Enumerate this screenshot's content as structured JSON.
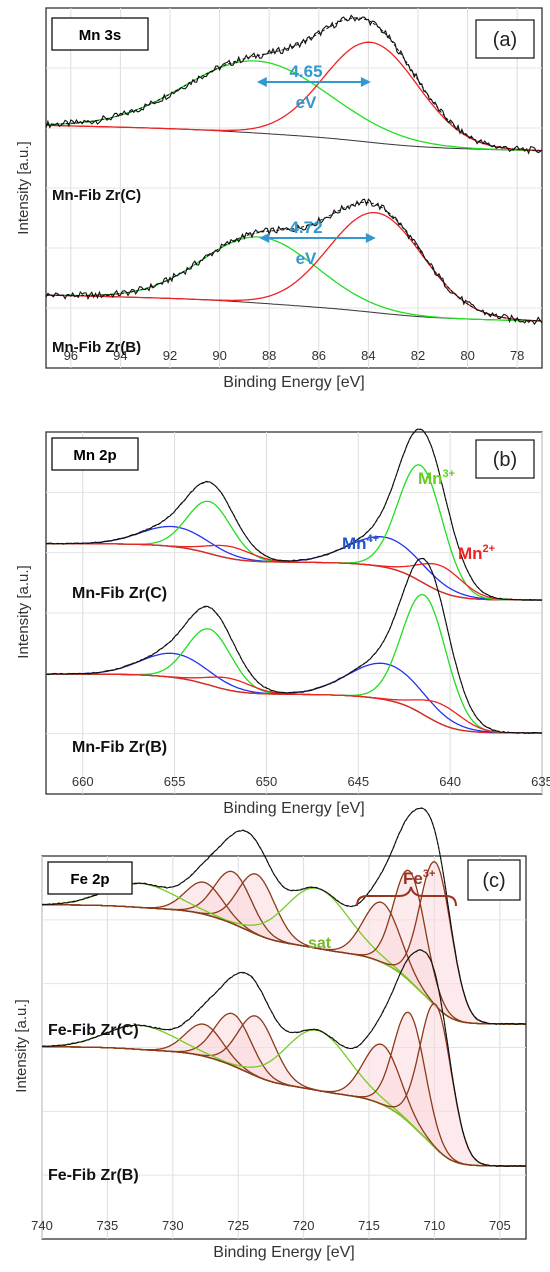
{
  "chart_data": [
    {
      "type": "line",
      "panel_id": "(a)",
      "title": "Mn 3s",
      "xlabel": "Binding Energy [eV]",
      "ylabel": "Intensity [a.u.]",
      "xlim": [
        97,
        77
      ],
      "x_reversed": true,
      "x_ticks": [
        96,
        94,
        92,
        90,
        88,
        86,
        84,
        82,
        80,
        78
      ],
      "grid": true,
      "samples": [
        {
          "name": "Mn-Fib Zr(C)",
          "annotation": {
            "value": "4.65",
            "unit": "eV",
            "from_x": 88.5,
            "to_x": 83.9
          },
          "baseline": {
            "x": [
              94,
              78.5
            ],
            "y": [
              0.04,
              -0.13
            ]
          },
          "components": [
            {
              "color": "#22dd22",
              "center": 88.5,
              "height": 0.36,
              "width": 2.9
            },
            {
              "color": "#ee2222",
              "center": 83.9,
              "height": 0.5,
              "width": 1.9
            }
          ],
          "data_x_range": [
            97,
            77
          ],
          "data_y_at_edges": [
            0.04,
            -0.12
          ]
        },
        {
          "name": "Mn-Fib Zr(B)",
          "annotation": {
            "value": "4.72",
            "unit": "eV",
            "from_x": 88.4,
            "to_x": 83.7
          },
          "baseline": {
            "x": [
              93,
              79
            ],
            "y": [
              0.0,
              -0.02
            ]
          },
          "components": [
            {
              "color": "#22dd22",
              "center": 88.4,
              "height": 0.33,
              "width": 2.3
            },
            {
              "color": "#ee2222",
              "center": 83.7,
              "height": 0.5,
              "width": 1.9
            }
          ],
          "data_x_range": [
            97,
            77
          ],
          "data_y_at_edges": [
            0.0,
            -0.04
          ]
        }
      ]
    },
    {
      "type": "line",
      "panel_id": "(b)",
      "title": "Mn 2p",
      "xlabel": "Binding Energy [eV]",
      "ylabel": "Intensity [a.u.]",
      "xlim": [
        662,
        635
      ],
      "x_reversed": true,
      "x_ticks": [
        660,
        655,
        650,
        645,
        640,
        635
      ],
      "grid": true,
      "species_labels": [
        {
          "text": "Mn",
          "sup": "4+",
          "color": "#2255cc"
        },
        {
          "text": "Mn",
          "sup": "3+",
          "color": "#66cc22"
        },
        {
          "text": "Mn",
          "sup": "2+",
          "color": "#ee2222"
        }
      ],
      "samples": [
        {
          "name": "Mn-Fib Zr(C)",
          "components": [
            {
              "color": "#2233ee",
              "center": 655,
              "height": 0.1,
              "width": 1.8
            },
            {
              "color": "#22dd22",
              "center": 653.1,
              "height": 0.26,
              "width": 1.2
            },
            {
              "color": "#ee2222",
              "center": 652,
              "height": 0.06,
              "width": 1.2
            },
            {
              "color": "#2233ee",
              "center": 643.5,
              "height": 0.15,
              "width": 2.0
            },
            {
              "color": "#22dd22",
              "center": 641.6,
              "height": 0.58,
              "width": 1.2
            },
            {
              "color": "#ee2222",
              "center": 640.5,
              "height": 0.13,
              "width": 1.2
            }
          ],
          "data_x_range": [
            662,
            635
          ]
        },
        {
          "name": "Mn-Fib Zr(B)",
          "components": [
            {
              "color": "#2233ee",
              "center": 655,
              "height": 0.12,
              "width": 1.8
            },
            {
              "color": "#22dd22",
              "center": 653.1,
              "height": 0.28,
              "width": 1.2
            },
            {
              "color": "#ee2222",
              "center": 652,
              "height": 0.06,
              "width": 1.2
            },
            {
              "color": "#2233ee",
              "center": 643.5,
              "height": 0.18,
              "width": 2.0
            },
            {
              "color": "#22dd22",
              "center": 641.4,
              "height": 0.6,
              "width": 1.2
            },
            {
              "color": "#ee2222",
              "center": 640.5,
              "height": 0.1,
              "width": 1.2
            }
          ],
          "data_x_range": [
            662,
            635
          ]
        }
      ]
    },
    {
      "type": "line",
      "panel_id": "(c)",
      "title": "Fe 2p",
      "xlabel": "Binding Energy [eV]",
      "ylabel": "Intensity [a.u.]",
      "xlim": [
        740,
        703
      ],
      "x_reversed": true,
      "x_ticks": [
        740,
        735,
        730,
        725,
        720,
        715,
        710,
        705
      ],
      "grid": true,
      "species_labels": [
        {
          "text": "Fe",
          "sup": "3+",
          "color": "#993322"
        },
        {
          "text": "sat",
          "sup": "",
          "color": "#77bb22"
        }
      ],
      "samples": [
        {
          "name": "Fe-Fib Zr(C)",
          "components": [
            {
              "color": "#8b3a1a",
              "center": 727.6,
              "height": 0.16,
              "width": 1.4
            },
            {
              "color": "#8b3a1a",
              "center": 725.4,
              "height": 0.26,
              "width": 1.4
            },
            {
              "color": "#8b3a1a",
              "center": 723.6,
              "height": 0.3,
              "width": 1.4
            },
            {
              "color": "#77cc22",
              "center": 732.5,
              "height": 0.12,
              "width": 2.6
            },
            {
              "color": "#77cc22",
              "center": 719,
              "height": 0.3,
              "width": 2.4
            },
            {
              "color": "#8b3a1a",
              "center": 714,
              "height": 0.3,
              "width": 1.4
            },
            {
              "color": "#8b3a1a",
              "center": 711.9,
              "height": 0.55,
              "width": 1.2
            },
            {
              "color": "#8b3a1a",
              "center": 709.9,
              "height": 0.72,
              "width": 1.2
            }
          ],
          "data_x_range": [
            740,
            703
          ]
        },
        {
          "name": "Fe-Fib Zr(B)",
          "components": [
            {
              "color": "#8b3a1a",
              "center": 727.6,
              "height": 0.16,
              "width": 1.4
            },
            {
              "color": "#8b3a1a",
              "center": 725.4,
              "height": 0.26,
              "width": 1.4
            },
            {
              "color": "#8b3a1a",
              "center": 723.6,
              "height": 0.3,
              "width": 1.4
            },
            {
              "color": "#77cc22",
              "center": 732.5,
              "height": 0.12,
              "width": 2.6
            },
            {
              "color": "#77cc22",
              "center": 719,
              "height": 0.3,
              "width": 2.4
            },
            {
              "color": "#8b3a1a",
              "center": 714,
              "height": 0.3,
              "width": 1.4
            },
            {
              "color": "#8b3a1a",
              "center": 711.9,
              "height": 0.55,
              "width": 1.2
            },
            {
              "color": "#8b3a1a",
              "center": 709.9,
              "height": 0.72,
              "width": 1.2
            }
          ],
          "data_x_range": [
            740,
            703
          ]
        }
      ]
    }
  ]
}
